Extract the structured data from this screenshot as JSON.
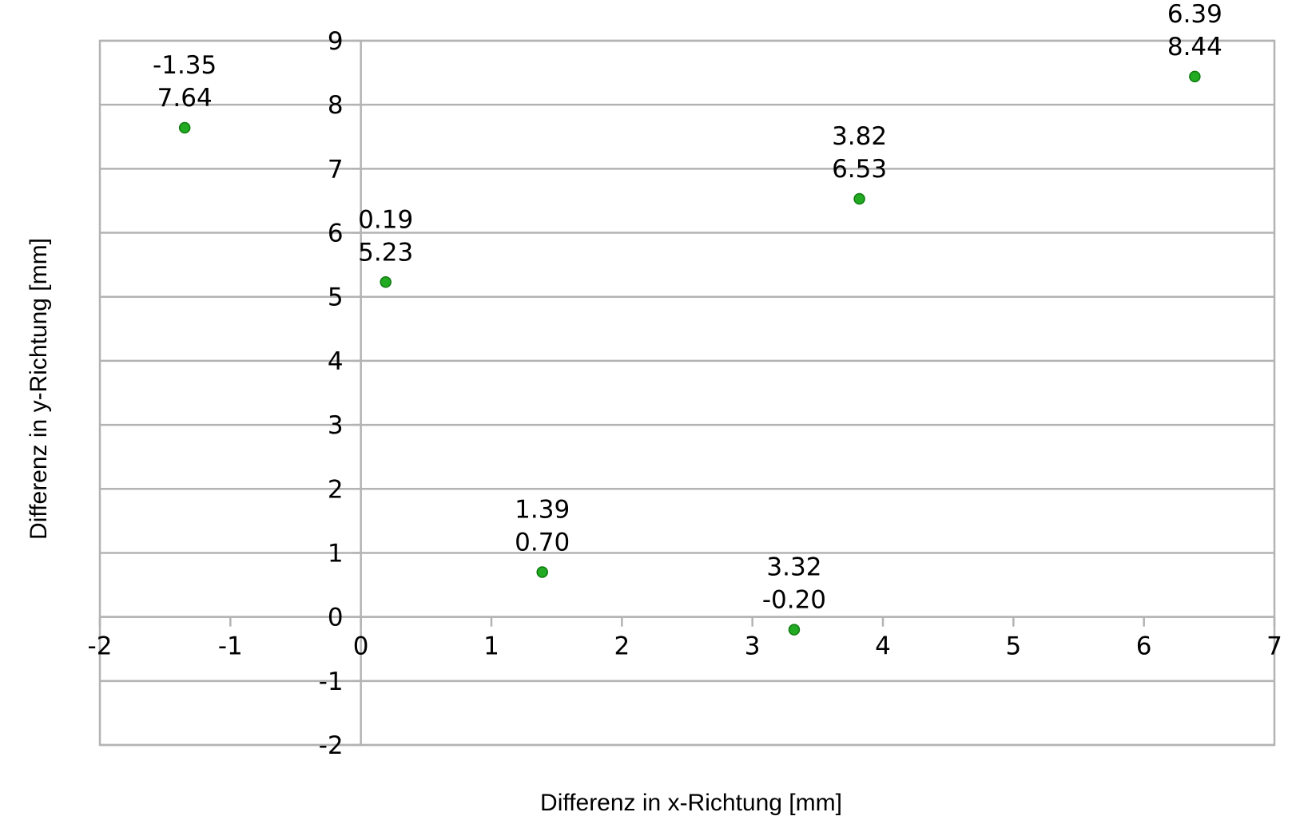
{
  "chart_data": {
    "type": "scatter",
    "title": "",
    "xlabel": "Differenz in x-Richtung [mm]",
    "ylabel": "Differenz in y-Richtung [mm]",
    "xlim": [
      -2,
      7
    ],
    "ylim": [
      -2,
      9
    ],
    "x_ticks": [
      "-2",
      "-1",
      "0",
      "1",
      "2",
      "3",
      "4",
      "5",
      "6",
      "7"
    ],
    "y_ticks": [
      "9",
      "8",
      "7",
      "6",
      "5",
      "4",
      "3",
      "2",
      "1",
      "0",
      "-1",
      "-2"
    ],
    "grid": "horizontal",
    "legend": "none",
    "marker_color": "#22aa22",
    "grid_color": "#b3b3b3",
    "points": [
      {
        "x": -1.35,
        "y": 7.64,
        "label_x": "-1.35",
        "label_y": "7.64"
      },
      {
        "x": 0.19,
        "y": 5.23,
        "label_x": "0.19",
        "label_y": "5.23"
      },
      {
        "x": 1.39,
        "y": 0.7,
        "label_x": "1.39",
        "label_y": "0.70"
      },
      {
        "x": 3.32,
        "y": -0.2,
        "label_x": "3.32",
        "label_y": "-0.20"
      },
      {
        "x": 3.82,
        "y": 6.53,
        "label_x": "3.82",
        "label_y": "6.53"
      },
      {
        "x": 6.39,
        "y": 8.44,
        "label_x": "6.39",
        "label_y": "8.44"
      }
    ]
  }
}
